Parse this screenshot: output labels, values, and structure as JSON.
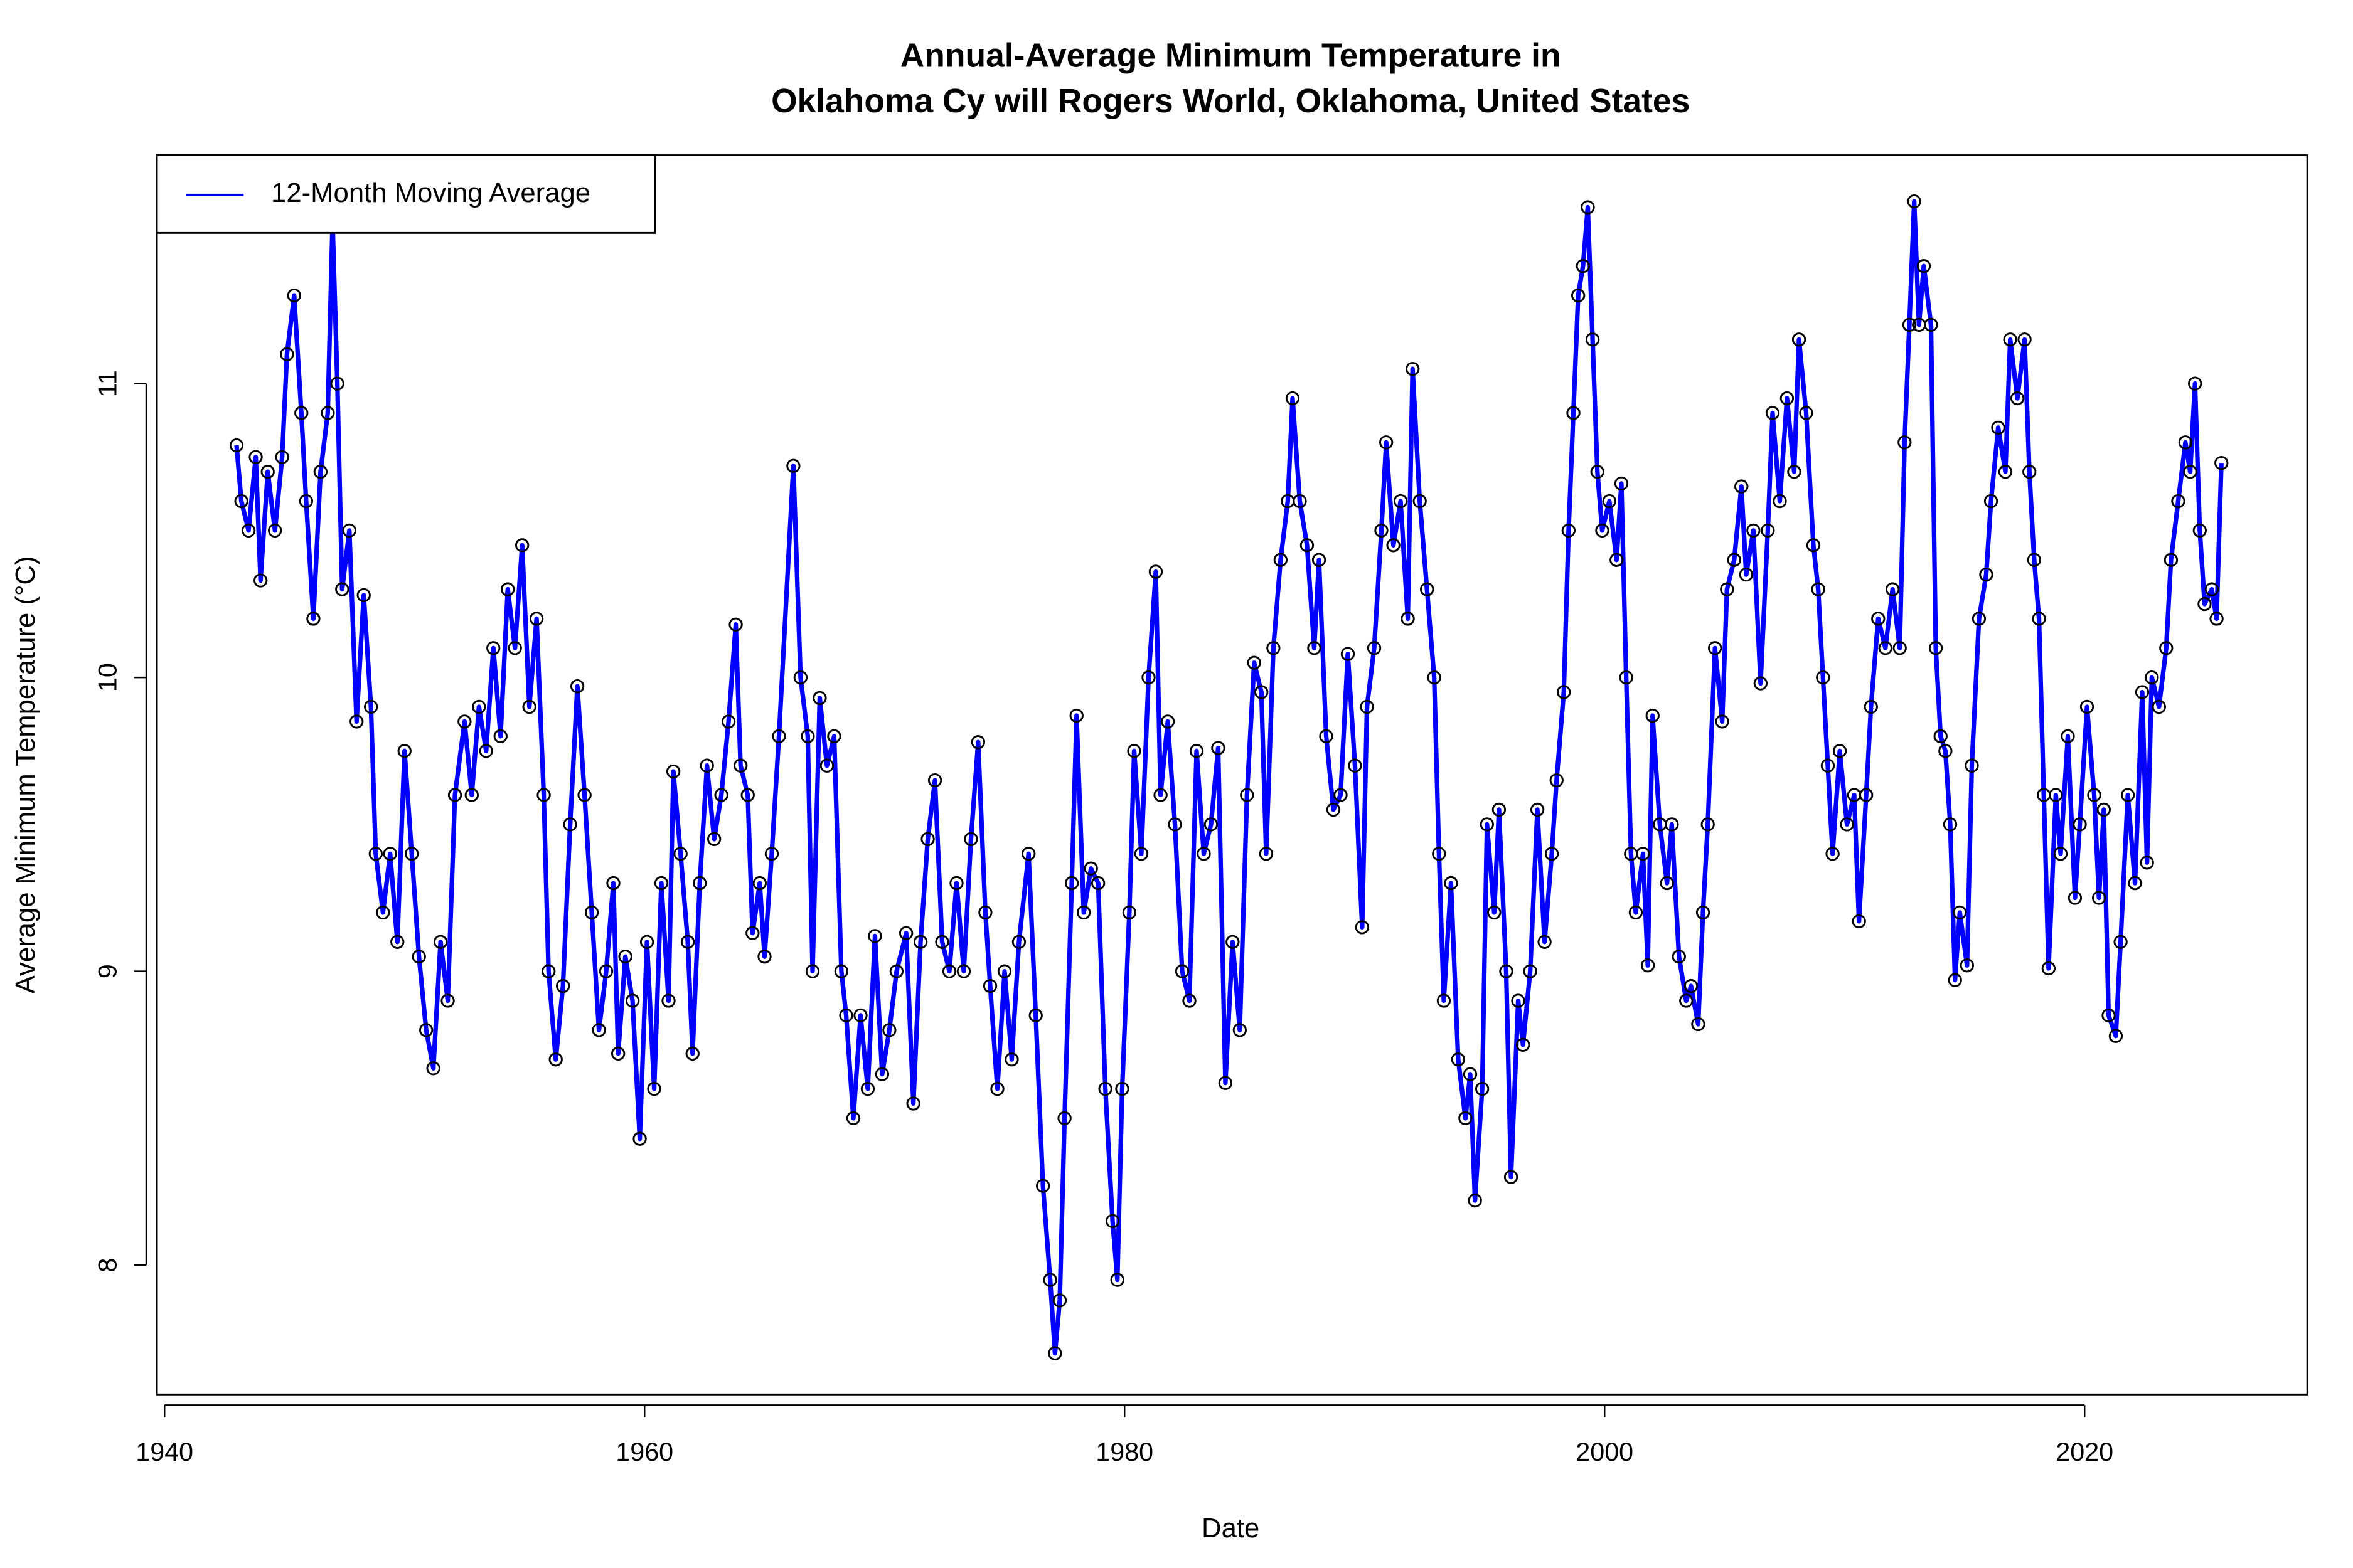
{
  "chart_data": {
    "type": "line",
    "title": [
      "Annual-Average Minimum Temperature in",
      "Oklahoma Cy will Rogers World, Oklahoma, United States"
    ],
    "x_label": "Date",
    "y_label": "Average Minimum Temperature (°C)",
    "xlim": [
      1939.68,
      2029.28
    ],
    "ylim": [
      7.56,
      11.777
    ],
    "xticks": [
      1940,
      1960,
      1980,
      2000,
      2020
    ],
    "yticks": [
      8,
      9,
      10,
      11
    ],
    "legend": "top-left",
    "x": [
      1943.0,
      1943.2,
      1943.5,
      1943.8,
      1944.0,
      1944.3,
      1944.6,
      1944.9,
      1945.1,
      1945.4,
      1945.7,
      1945.9,
      1946.2,
      1946.5,
      1946.8,
      1947.0,
      1947.2,
      1947.4,
      1947.7,
      1948.0,
      1948.3,
      1948.6,
      1948.8,
      1949.1,
      1949.4,
      1949.7,
      1950.0,
      1950.3,
      1950.6,
      1950.9,
      1951.2,
      1951.5,
      1951.8,
      1952.1,
      1952.5,
      1952.8,
      1953.1,
      1953.4,
      1953.7,
      1954.0,
      1954.3,
      1954.6,
      1954.9,
      1955.2,
      1955.5,
      1955.8,
      1956.0,
      1956.3,
      1956.6,
      1956.9,
      1957.2,
      1957.5,
      1957.8,
      1958.1,
      1958.4,
      1958.7,
      1958.9,
      1959.2,
      1959.5,
      1959.8,
      1960.1,
      1960.4,
      1960.7,
      1961.0,
      1961.2,
      1961.5,
      1961.8,
      1962.0,
      1962.3,
      1962.6,
      1962.9,
      1963.2,
      1963.5,
      1963.8,
      1964.0,
      1964.3,
      1964.5,
      1964.8,
      1965.0,
      1965.3,
      1965.6,
      1966.2,
      1966.5,
      1966.8,
      1967.0,
      1967.3,
      1967.6,
      1967.9,
      1968.2,
      1968.4,
      1968.7,
      1969.0,
      1969.3,
      1969.6,
      1969.9,
      1970.2,
      1970.5,
      1970.9,
      1971.2,
      1971.5,
      1971.8,
      1972.1,
      1972.4,
      1972.7,
      1973.0,
      1973.3,
      1973.6,
      1973.9,
      1974.2,
      1974.4,
      1974.7,
      1975.0,
      1975.3,
      1975.6,
      1976.0,
      1976.3,
      1976.6,
      1976.9,
      1977.1,
      1977.3,
      1977.5,
      1977.8,
      1978.0,
      1978.3,
      1978.6,
      1978.9,
      1979.2,
      1979.5,
      1979.7,
      1979.9,
      1980.2,
      1980.4,
      1980.7,
      1981.0,
      1981.3,
      1981.5,
      1981.8,
      1982.1,
      1982.4,
      1982.7,
      1983.0,
      1983.3,
      1983.6,
      1983.9,
      1984.2,
      1984.5,
      1984.8,
      1985.1,
      1985.4,
      1985.7,
      1985.9,
      1986.2,
      1986.5,
      1986.8,
      1987.0,
      1987.3,
      1987.6,
      1987.9,
      1988.1,
      1988.4,
      1988.7,
      1989.0,
      1989.3,
      1989.6,
      1989.9,
      1990.1,
      1990.4,
      1990.7,
      1990.9,
      1991.2,
      1991.5,
      1991.8,
      1992.0,
      1992.3,
      1992.6,
      1992.9,
      1993.1,
      1993.3,
      1993.6,
      1993.9,
      1994.2,
      1994.4,
      1994.6,
      1994.9,
      1995.1,
      1995.4,
      1995.6,
      1995.9,
      1996.1,
      1996.4,
      1996.6,
      1996.9,
      1997.2,
      1997.5,
      1997.8,
      1998.0,
      1998.3,
      1998.5,
      1998.7,
      1998.9,
      1999.1,
      1999.3,
      1999.5,
      1999.7,
      1999.9,
      2000.2,
      2000.5,
      2000.7,
      2000.9,
      2001.1,
      2001.3,
      2001.6,
      2001.8,
      2002.0,
      2002.3,
      2002.6,
      2002.8,
      2003.1,
      2003.4,
      2003.6,
      2003.9,
      2004.1,
      2004.3,
      2004.6,
      2004.9,
      2005.1,
      2005.4,
      2005.7,
      2005.9,
      2006.2,
      2006.5,
      2006.8,
      2007.0,
      2007.3,
      2007.6,
      2007.9,
      2008.1,
      2008.4,
      2008.7,
      2008.9,
      2009.1,
      2009.3,
      2009.5,
      2009.8,
      2010.1,
      2010.4,
      2010.6,
      2010.9,
      2011.1,
      2011.4,
      2011.7,
      2012.0,
      2012.3,
      2012.5,
      2012.7,
      2012.9,
      2013.1,
      2013.3,
      2013.6,
      2013.8,
      2014.0,
      2014.2,
      2014.4,
      2014.6,
      2014.8,
      2015.1,
      2015.3,
      2015.6,
      2015.9,
      2016.1,
      2016.4,
      2016.7,
      2016.9,
      2017.2,
      2017.5,
      2017.7,
      2017.9,
      2018.1,
      2018.3,
      2018.5,
      2018.8,
      2019.0,
      2019.3,
      2019.6,
      2019.8,
      2020.1,
      2020.4,
      2020.6,
      2020.8,
      2021.0,
      2021.3,
      2021.5,
      2021.8,
      2022.1,
      2022.4,
      2022.6,
      2022.8,
      2023.1,
      2023.4,
      2023.6,
      2023.9,
      2024.2,
      2024.4,
      2024.6,
      2024.8,
      2025.0,
      2025.3,
      2025.5,
      2025.7
    ],
    "series": [
      {
        "name": "12-Month Moving Average",
        "color": "#0000ff",
        "marker_color": "#000000",
        "values": [
          10.79,
          10.6,
          10.5,
          10.75,
          10.33,
          10.7,
          10.5,
          10.75,
          11.1,
          11.3,
          10.9,
          10.6,
          10.2,
          10.7,
          10.9,
          11.55,
          11.0,
          10.3,
          10.5,
          9.85,
          10.28,
          9.9,
          9.4,
          9.2,
          9.4,
          9.1,
          9.75,
          9.4,
          9.05,
          8.8,
          8.67,
          9.1,
          8.9,
          9.6,
          9.85,
          9.6,
          9.9,
          9.75,
          10.1,
          9.8,
          10.3,
          10.1,
          10.45,
          9.9,
          10.2,
          9.6,
          9.0,
          8.7,
          8.95,
          9.5,
          9.97,
          9.6,
          9.2,
          8.8,
          9.0,
          9.3,
          8.72,
          9.05,
          8.9,
          8.43,
          9.1,
          8.6,
          9.3,
          8.9,
          9.68,
          9.4,
          9.1,
          8.72,
          9.3,
          9.7,
          9.45,
          9.6,
          9.85,
          10.18,
          9.7,
          9.6,
          9.13,
          9.3,
          9.05,
          9.4,
          9.8,
          10.72,
          10.0,
          9.8,
          9.0,
          9.93,
          9.7,
          9.8,
          9.0,
          8.85,
          8.5,
          8.85,
          8.6,
          9.12,
          8.65,
          8.8,
          9.0,
          9.13,
          8.55,
          9.1,
          9.45,
          9.65,
          9.1,
          9.0,
          9.3,
          9.0,
          9.45,
          9.78,
          9.2,
          8.95,
          8.6,
          9.0,
          8.7,
          9.1,
          9.4,
          8.85,
          8.27,
          7.95,
          7.7,
          7.88,
          8.5,
          9.3,
          9.87,
          9.2,
          9.35,
          9.3,
          8.6,
          8.15,
          7.95,
          8.6,
          9.2,
          9.75,
          9.4,
          10.0,
          10.36,
          9.6,
          9.85,
          9.5,
          9.0,
          8.9,
          9.75,
          9.4,
          9.5,
          9.76,
          8.62,
          9.1,
          8.8,
          9.6,
          10.05,
          9.95,
          9.4,
          10.1,
          10.4,
          10.6,
          10.95,
          10.6,
          10.45,
          10.1,
          10.4,
          9.8,
          9.55,
          9.6,
          10.08,
          9.7,
          9.15,
          9.9,
          10.1,
          10.5,
          10.8,
          10.45,
          10.6,
          10.2,
          11.05,
          10.6,
          10.3,
          10.0,
          9.4,
          8.9,
          9.3,
          8.7,
          8.5,
          8.65,
          8.22,
          8.6,
          9.5,
          9.2,
          9.55,
          9.0,
          8.3,
          8.9,
          8.75,
          9.0,
          9.55,
          9.1,
          9.4,
          9.65,
          9.95,
          10.5,
          10.9,
          11.3,
          11.4,
          11.6,
          11.15,
          10.7,
          10.5,
          10.6,
          10.4,
          10.66,
          10.0,
          9.4,
          9.2,
          9.4,
          9.02,
          9.87,
          9.5,
          9.3,
          9.5,
          9.05,
          8.9,
          8.95,
          8.82,
          9.2,
          9.5,
          10.1,
          9.85,
          10.3,
          10.4,
          10.65,
          10.35,
          10.5,
          9.98,
          10.5,
          10.9,
          10.6,
          10.95,
          10.7,
          11.15,
          10.9,
          10.45,
          10.3,
          10.0,
          9.7,
          9.4,
          9.75,
          9.5,
          9.6,
          9.17,
          9.6,
          9.9,
          10.2,
          10.1,
          10.3,
          10.1,
          10.8,
          11.2,
          11.62,
          11.2,
          11.4,
          11.2,
          10.1,
          9.8,
          9.75,
          9.5,
          8.97,
          9.2,
          9.02,
          9.7,
          10.2,
          10.35,
          10.6,
          10.85,
          10.7,
          11.15,
          10.95,
          11.15,
          10.7,
          10.4,
          10.2,
          9.6,
          9.01,
          9.6,
          9.4,
          9.8,
          9.25,
          9.5,
          9.9,
          9.6,
          9.25,
          9.55,
          8.85,
          8.78,
          9.1,
          9.6,
          9.3,
          9.95,
          9.37,
          10.0,
          9.9,
          10.1,
          10.4,
          10.6,
          10.8,
          10.7,
          11.0,
          10.5,
          10.25,
          10.3,
          10.2,
          10.73
        ]
      }
    ]
  }
}
